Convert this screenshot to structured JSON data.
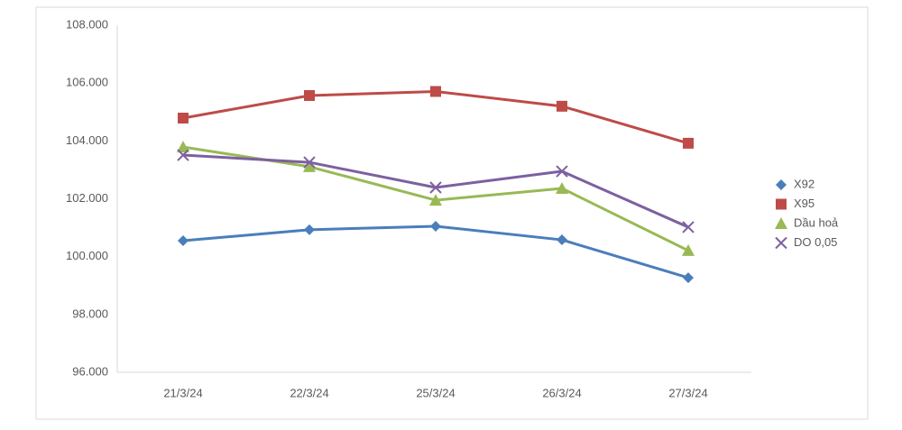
{
  "chart_data": {
    "type": "line",
    "categories": [
      "21/3/24",
      "22/3/24",
      "25/3/24",
      "26/3/24",
      "27/3/24"
    ],
    "series": [
      {
        "name": "X92",
        "color": "#4a7ebb",
        "marker": "diamond",
        "values": [
          100550,
          100930,
          101050,
          100580,
          99270
        ]
      },
      {
        "name": "X95",
        "color": "#be4b48",
        "marker": "square",
        "values": [
          104790,
          105570,
          105710,
          105200,
          103920
        ]
      },
      {
        "name": "Dầu hoả",
        "color": "#98b954",
        "marker": "triangle",
        "values": [
          103790,
          103110,
          101950,
          102360,
          100210
        ]
      },
      {
        "name": "DO 0,05",
        "color": "#7d60a0",
        "marker": "x",
        "values": [
          103510,
          103260,
          102390,
          102950,
          101020
        ]
      }
    ],
    "ylim": [
      96000,
      108000
    ],
    "yticks": [
      {
        "value": 96000,
        "label": "96.000"
      },
      {
        "value": 98000,
        "label": "98.000"
      },
      {
        "value": 100000,
        "label": "100.000"
      },
      {
        "value": 102000,
        "label": "102.000"
      },
      {
        "value": 104000,
        "label": "104.000"
      },
      {
        "value": 106000,
        "label": "106.000"
      },
      {
        "value": 108000,
        "label": "108.000"
      }
    ],
    "grid": false,
    "legend": "right"
  }
}
